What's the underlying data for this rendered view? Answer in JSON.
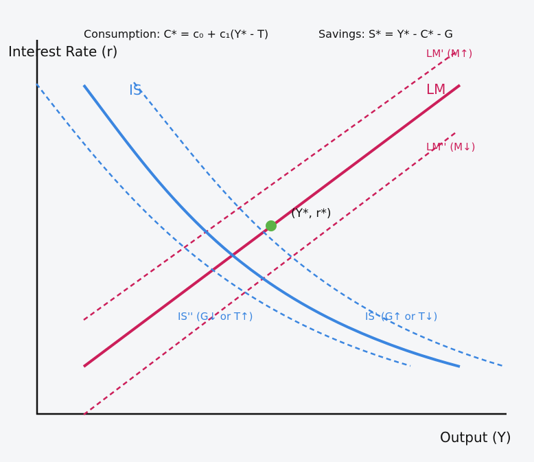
{
  "equations": {
    "consumption": "Consumption: C* = c₀ + c₁(Y* - T)",
    "savings": "Savings: S* = Y* - C* - G"
  },
  "axes": {
    "y_label": "Interest Rate (r)",
    "x_label": "Output (Y)"
  },
  "curves": {
    "is_label": "IS",
    "is_shift_right_label": "IS' (G↑ or T↓)",
    "is_shift_left_label": "IS'' (G↓ or T↑)",
    "lm_label": "LM",
    "lm_shift_up_label": "LM' (M↑)",
    "lm_shift_down_label": "LM'' (M↓)"
  },
  "equilibrium": {
    "label": "(Y*, r*)"
  },
  "colors": {
    "is": "#3b86e0",
    "lm": "#cc1f5a",
    "equilibrium": "#5cb347",
    "axis": "#111111",
    "background": "#f5f6f8"
  }
}
